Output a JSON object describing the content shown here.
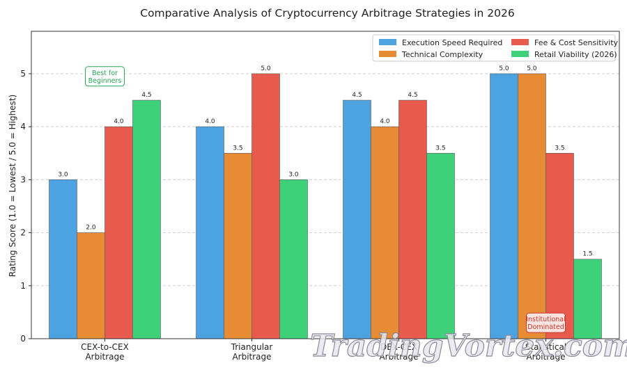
{
  "chart_data": {
    "type": "bar",
    "title": "Comparative Analysis of Cryptocurrency Arbitrage Strategies in 2026",
    "xlabel": "",
    "ylabel": "Rating Score (1.0 = Lowest / 5.0 = Highest)",
    "ylim": [
      0,
      5.8
    ],
    "yticks": [
      "0",
      "1",
      "2",
      "3",
      "4",
      "5"
    ],
    "grid": true,
    "legend_position": "top-right",
    "categories": [
      [
        "CEX-to-CEX",
        "Arbitrage"
      ],
      [
        "Triangular",
        "Arbitrage"
      ],
      [
        "DEX-CEX",
        "Arbitrage"
      ],
      [
        "Statistical",
        "Arbitrage"
      ]
    ],
    "series": [
      {
        "name": "Execution Speed Required",
        "color": "#4da3e0",
        "values": [
          3.0,
          4.0,
          4.5,
          5.0
        ],
        "labels": [
          "3.0",
          "4.0",
          "4.5",
          "5.0"
        ]
      },
      {
        "name": "Technical Complexity",
        "color": "#e78c35",
        "values": [
          2.0,
          3.5,
          4.0,
          5.0
        ],
        "labels": [
          "2.0",
          "3.5",
          "4.0",
          "5.0"
        ]
      },
      {
        "name": "Fee & Cost Sensitivity",
        "color": "#e85a4b",
        "values": [
          4.0,
          5.0,
          4.5,
          3.5
        ],
        "labels": [
          "4.0",
          "5.0",
          "4.5",
          "3.5"
        ]
      },
      {
        "name": "Retail Viability (2026)",
        "color": "#3fd07a",
        "values": [
          4.5,
          3.0,
          3.5,
          1.5
        ],
        "labels": [
          "4.5",
          "3.0",
          "3.5",
          "1.5"
        ]
      }
    ],
    "annotations": [
      {
        "lines": [
          "Best for",
          "Beginners"
        ],
        "category": 0,
        "color": "#27a653",
        "bg": "#ffffff"
      },
      {
        "lines": [
          "Institutional",
          "Dominated"
        ],
        "category": 3,
        "color": "#c9362b",
        "bg": "#fbe3e0"
      }
    ]
  },
  "watermark": "TradingVortex.com"
}
